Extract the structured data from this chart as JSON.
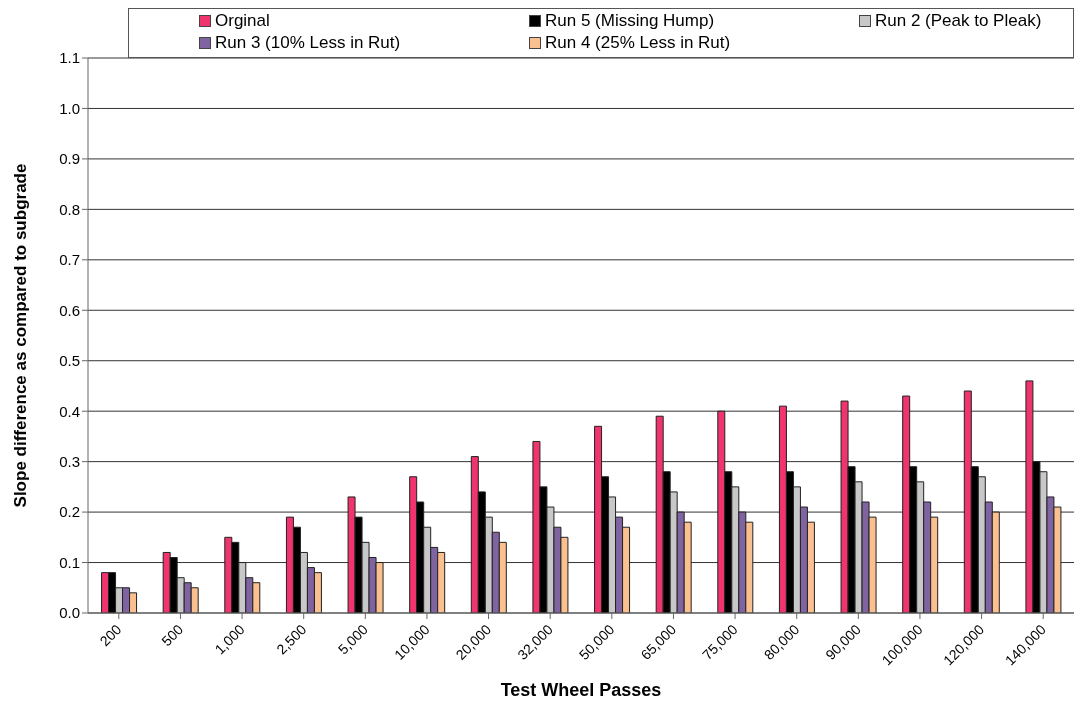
{
  "chart_data": {
    "type": "bar",
    "xlabel": "Test Wheel Passes",
    "ylabel": "Slope difference as compared to subgrade",
    "categories": [
      "200",
      "500",
      "1,000",
      "2,500",
      "5,000",
      "10,000",
      "20,000",
      "32,000",
      "50,000",
      "65,000",
      "75,000",
      "80,000",
      "90,000",
      "100,000",
      "120,000",
      "140,000"
    ],
    "series": [
      {
        "name": "Orginal",
        "color": "#f0346e",
        "values": [
          0.08,
          0.12,
          0.15,
          0.19,
          0.23,
          0.27,
          0.31,
          0.34,
          0.37,
          0.39,
          0.4,
          0.41,
          0.42,
          0.43,
          0.44,
          0.46
        ]
      },
      {
        "name": "Run 5 (Missing Hump)",
        "color": "#000000",
        "values": [
          0.08,
          0.11,
          0.14,
          0.17,
          0.19,
          0.22,
          0.24,
          0.25,
          0.27,
          0.28,
          0.28,
          0.28,
          0.29,
          0.29,
          0.29,
          0.3
        ]
      },
      {
        "name": "Run 2 (Peak to Pleak)",
        "color": "#c8c8c8",
        "values": [
          0.05,
          0.07,
          0.1,
          0.12,
          0.14,
          0.17,
          0.19,
          0.21,
          0.23,
          0.24,
          0.25,
          0.25,
          0.26,
          0.26,
          0.27,
          0.28
        ]
      },
      {
        "name": "Run 3 (10% Less in Rut)",
        "color": "#8064a2",
        "values": [
          0.05,
          0.06,
          0.07,
          0.09,
          0.11,
          0.13,
          0.16,
          0.17,
          0.19,
          0.2,
          0.2,
          0.21,
          0.22,
          0.22,
          0.22,
          0.23
        ]
      },
      {
        "name": "Run 4 (25% Less in Rut)",
        "color": "#fac090",
        "values": [
          0.04,
          0.05,
          0.06,
          0.08,
          0.1,
          0.12,
          0.14,
          0.15,
          0.17,
          0.18,
          0.18,
          0.18,
          0.19,
          0.19,
          0.2,
          0.21
        ]
      }
    ],
    "ylim": [
      0,
      1.1
    ],
    "yticks": [
      {
        "value": 0,
        "label": "0.0"
      },
      {
        "value": 0.1,
        "label": "0.1"
      },
      {
        "value": 0.2,
        "label": "0.2"
      },
      {
        "value": 0.3,
        "label": "0.3"
      },
      {
        "value": 0.4,
        "label": "0.4"
      },
      {
        "value": 0.5,
        "label": "0.5"
      },
      {
        "value": 0.6,
        "label": "0.6"
      },
      {
        "value": 0.7,
        "label": "0.7"
      },
      {
        "value": 0.8,
        "label": "0.8"
      },
      {
        "value": 0.9,
        "label": "0.9"
      },
      {
        "value": 1.0,
        "label": "1.0"
      },
      {
        "value": 1.1,
        "label": "1.1"
      }
    ],
    "grid": "y",
    "legend": "top"
  }
}
